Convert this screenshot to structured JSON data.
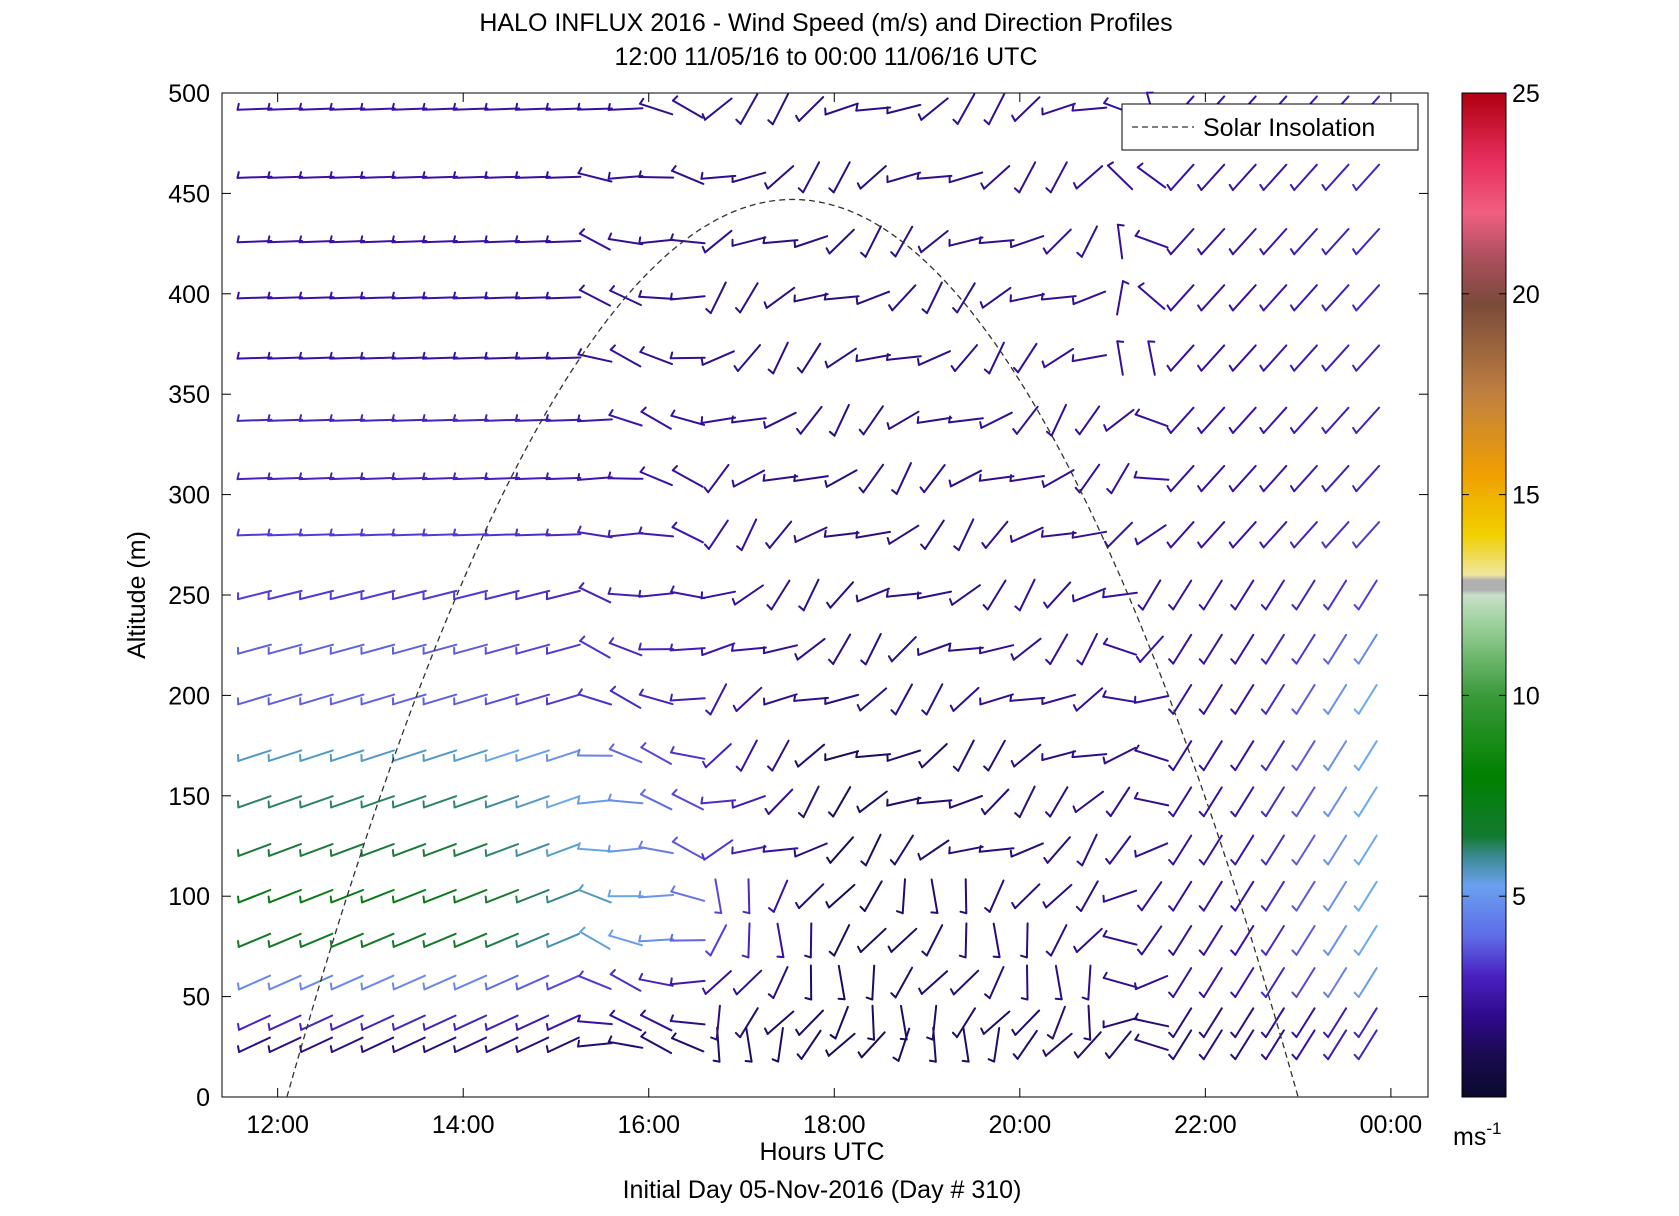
{
  "chart_data": {
    "type": "wind-barb-profile",
    "title": "HALO INFLUX 2016 - Wind Speed (m/s) and Direction Profiles",
    "subtitle": "12:00 11/05/16 to 00:00 11/06/16  UTC",
    "xlabel": "Hours UTC",
    "footer": "Initial Day 05-Nov-2016 (Day # 310)",
    "ylabel": "Altitude (m)",
    "x_range_hours": [
      11.4,
      24.4
    ],
    "x_tick_values": [
      12,
      14,
      16,
      18,
      20,
      22,
      24
    ],
    "x_tick_labels": [
      "12:00",
      "14:00",
      "16:00",
      "18:00",
      "20:00",
      "22:00",
      "00:00"
    ],
    "ylim": [
      0,
      500
    ],
    "y_tick_labels": [
      "0",
      "50",
      "100",
      "150",
      "200",
      "250",
      "300",
      "350",
      "400",
      "450",
      "500"
    ],
    "colorbar": {
      "range": [
        0,
        25
      ],
      "tick_labels": [
        "5",
        "10",
        "15",
        "20",
        "25"
      ],
      "unit_label": "ms",
      "unit_exponent": "-1"
    },
    "legend": {
      "position": "top-right",
      "entries": [
        "Solar Insolation"
      ]
    },
    "solar_insolation": {
      "start_hour": 12.1,
      "peak_hour": 17.55,
      "end_hour": 23.0,
      "peak_altitude": 447
    },
    "profiles": {
      "altitudes": [
        26,
        37,
        57,
        78,
        100,
        123,
        147,
        170,
        198,
        223,
        250,
        280,
        308,
        337,
        368,
        398,
        426,
        458,
        492
      ],
      "times": [
        11.75,
        12.08,
        12.42,
        12.75,
        13.08,
        13.42,
        13.75,
        14.08,
        14.42,
        14.75,
        15.08,
        15.42,
        15.75,
        16.08,
        16.42,
        16.75,
        17.08,
        17.42,
        17.75,
        18.08,
        18.42,
        18.75,
        19.08,
        19.42,
        19.75,
        20.08,
        20.42,
        20.75,
        21.08,
        21.42,
        21.75,
        22.08,
        22.42,
        22.75,
        23.08,
        23.42,
        23.75
      ],
      "wind_speed_ms": {
        "14.00": [
          1.5,
          2.5,
          4.0,
          7.5,
          8.0,
          7.0,
          6.5,
          5.5,
          3.5,
          3.5,
          3.0,
          3.0,
          2.5,
          2.5,
          2.0,
          2.0,
          2.0,
          2.0,
          2.0
        ],
        "18.00": [
          1.0,
          1.0,
          1.0,
          1.0,
          1.0,
          1.0,
          1.0,
          1.0,
          1.5,
          1.5,
          1.5,
          1.5,
          1.5,
          1.5,
          1.5,
          1.5,
          1.5,
          1.5,
          1.5
        ],
        "22.50": [
          1.5,
          1.5,
          2.0,
          2.0,
          2.0,
          2.0,
          2.0,
          2.0,
          2.0,
          2.0,
          2.0,
          2.0,
          2.0,
          2.0,
          2.0,
          2.0,
          2.0,
          2.0,
          2.0
        ],
        "23.75": [
          2.5,
          2.5,
          4.5,
          5.0,
          5.0,
          5.0,
          5.0,
          5.0,
          5.0,
          4.0,
          3.0,
          3.0,
          2.5,
          2.5,
          2.5,
          2.5,
          2.5,
          2.5,
          2.5
        ]
      }
    }
  }
}
